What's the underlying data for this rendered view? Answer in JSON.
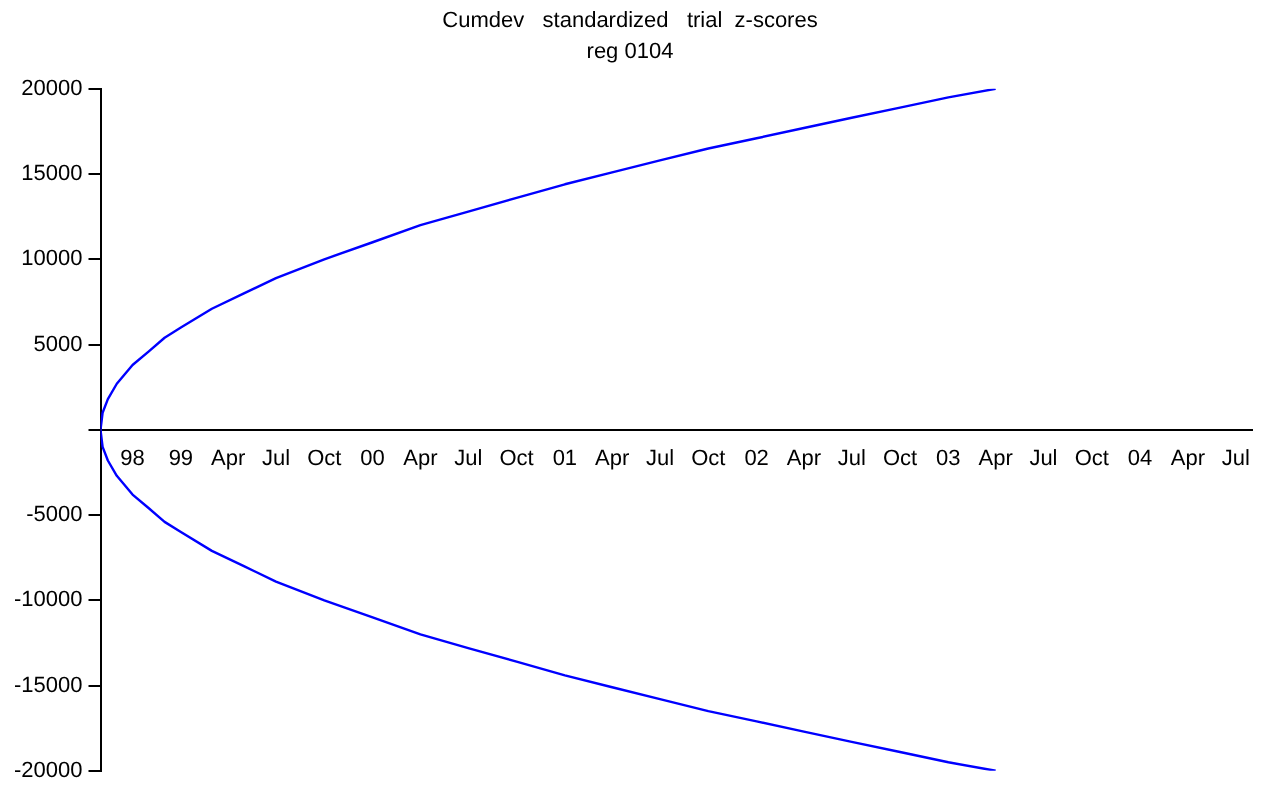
{
  "chart_data": {
    "type": "line",
    "title": "Cumdev   standardized   trial  z-scores",
    "subtitle": "reg 0104",
    "x": [
      "2003-04-01",
      "2003-01-01",
      "2002-10-01",
      "2002-07-01",
      "2002-04-01",
      "2002-01-01",
      "2001-10-01",
      "2001-07-01",
      "2001-04-01",
      "2001-01-01",
      "2000-10-01",
      "2000-07-01",
      "2000-04-01",
      "2000-01-01",
      "1999-10-01",
      "1999-07-01",
      "1999-05-01",
      "1999-03-01",
      "1999-01-01",
      "1998-12-01",
      "1998-11-01",
      "1998-10-01",
      "1998-09-01",
      "1998-08-15",
      "1998-08-05",
      "1998-08-01",
      "1998-08-05",
      "1998-08-15",
      "1998-09-01",
      "1998-10-01",
      "1998-11-01",
      "1998-12-01",
      "1999-01-01",
      "1999-03-01",
      "1999-05-01",
      "1999-07-01",
      "1999-10-01",
      "2000-01-01",
      "2000-04-01",
      "2000-07-01",
      "2000-10-01",
      "2001-01-01",
      "2001-04-01",
      "2001-07-01",
      "2001-10-01",
      "2002-01-01",
      "2002-04-01",
      "2002-07-01",
      "2002-10-01",
      "2003-01-01",
      "2003-04-01"
    ],
    "series": [
      {
        "color": "#0000ff",
        "values": [
          20000,
          19500,
          18900,
          18300,
          17700,
          17100,
          16500,
          15800,
          15100,
          14400,
          13600,
          12800,
          12000,
          11000,
          10000,
          8900,
          8000,
          7100,
          6000,
          5400,
          4600,
          3800,
          2700,
          1800,
          1000,
          0,
          -1000,
          -1800,
          -2700,
          -3800,
          -4600,
          -5400,
          -6000,
          -7100,
          -8000,
          -8900,
          -10000,
          -11000,
          -12000,
          -12800,
          -13600,
          -14400,
          -15100,
          -15800,
          -16500,
          -17100,
          -17700,
          -18300,
          -18900,
          -19500,
          -20000
        ]
      }
    ],
    "xlim": [
      "1998-08-01",
      "2004-08-01"
    ],
    "xticks": [
      {
        "value": "1998-10-01",
        "label": "98"
      },
      {
        "value": "1999-01-01",
        "label": "99"
      },
      {
        "value": "1999-04-01",
        "label": "Apr"
      },
      {
        "value": "1999-07-01",
        "label": "Jul"
      },
      {
        "value": "1999-10-01",
        "label": "Oct"
      },
      {
        "value": "2000-01-01",
        "label": "00"
      },
      {
        "value": "2000-04-01",
        "label": "Apr"
      },
      {
        "value": "2000-07-01",
        "label": "Jul"
      },
      {
        "value": "2000-10-01",
        "label": "Oct"
      },
      {
        "value": "2001-01-01",
        "label": "01"
      },
      {
        "value": "2001-04-01",
        "label": "Apr"
      },
      {
        "value": "2001-07-01",
        "label": "Jul"
      },
      {
        "value": "2001-10-01",
        "label": "Oct"
      },
      {
        "value": "2002-01-01",
        "label": "02"
      },
      {
        "value": "2002-04-01",
        "label": "Apr"
      },
      {
        "value": "2002-07-01",
        "label": "Jul"
      },
      {
        "value": "2002-10-01",
        "label": "Oct"
      },
      {
        "value": "2003-01-01",
        "label": "03"
      },
      {
        "value": "2003-04-01",
        "label": "Apr"
      },
      {
        "value": "2003-07-01",
        "label": "Jul"
      },
      {
        "value": "2003-10-01",
        "label": "Oct"
      },
      {
        "value": "2004-01-01",
        "label": "04"
      },
      {
        "value": "2004-04-01",
        "label": "Apr"
      },
      {
        "value": "2004-07-01",
        "label": "Jul"
      }
    ],
    "ylim": [
      -20000,
      20000
    ],
    "yticks": [
      -20000,
      -15000,
      -10000,
      -5000,
      {
        "value": 0,
        "label": null
      },
      5000,
      10000,
      15000,
      20000
    ],
    "grid": false,
    "legend": false,
    "marker": "none",
    "line_style": "solid"
  }
}
